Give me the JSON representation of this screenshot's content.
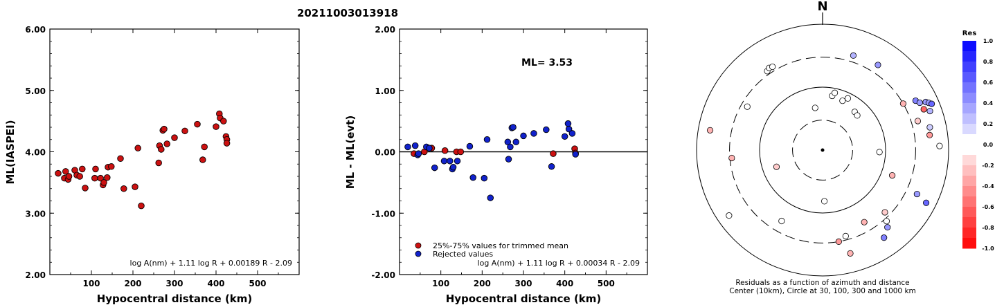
{
  "page_title": "20211003013918",
  "colors": {
    "red": "#dd1111",
    "blue": "#1122cc",
    "trimmed": "#cc1111"
  },
  "chart_data": [
    {
      "type": "scatter",
      "ylabel": "ML(IASPEI)",
      "xlabel": "Hypocentral distance (km)",
      "xlim": [
        0,
        600
      ],
      "ylim": [
        2.0,
        6.0
      ],
      "xticks": [
        "100",
        "200",
        "300",
        "400",
        "500"
      ],
      "yticks": [
        "2.00",
        "3.00",
        "4.00",
        "5.00",
        "6.00"
      ],
      "formula": "log A(nm) + 1.11 log R + 0.00189 R - 2.09",
      "points": [
        [
          20,
          3.65
        ],
        [
          35,
          3.57
        ],
        [
          38,
          3.68
        ],
        [
          44,
          3.55
        ],
        [
          46,
          3.6
        ],
        [
          60,
          3.7
        ],
        [
          65,
          3.62
        ],
        [
          72,
          3.6
        ],
        [
          78,
          3.72
        ],
        [
          85,
          3.41
        ],
        [
          108,
          3.57
        ],
        [
          110,
          3.72
        ],
        [
          122,
          3.57
        ],
        [
          128,
          3.46
        ],
        [
          130,
          3.5
        ],
        [
          138,
          3.58
        ],
        [
          140,
          3.75
        ],
        [
          148,
          3.76
        ],
        [
          170,
          3.89
        ],
        [
          178,
          3.4
        ],
        [
          205,
          3.43
        ],
        [
          212,
          4.06
        ],
        [
          220,
          3.12
        ],
        [
          262,
          3.82
        ],
        [
          264,
          4.1
        ],
        [
          268,
          4.04
        ],
        [
          272,
          4.35
        ],
        [
          275,
          4.37
        ],
        [
          282,
          4.13
        ],
        [
          300,
          4.23
        ],
        [
          325,
          4.34
        ],
        [
          355,
          4.45
        ],
        [
          368,
          3.87
        ],
        [
          372,
          4.08
        ],
        [
          400,
          4.41
        ],
        [
          408,
          4.62
        ],
        [
          410,
          4.55
        ],
        [
          418,
          4.5
        ],
        [
          424,
          4.25
        ],
        [
          426,
          4.2
        ],
        [
          426,
          4.14
        ]
      ]
    },
    {
      "type": "scatter",
      "ylabel": "ML - ML(evt)",
      "xlabel": "Hypocentral distance (km)",
      "xlim": [
        0,
        600
      ],
      "ylim": [
        -2.0,
        2.0
      ],
      "xticks": [
        "100",
        "200",
        "300",
        "400",
        "500"
      ],
      "yticks": [
        "-2.00",
        "-1.00",
        "0.00",
        "1.00",
        "2.00"
      ],
      "annotation": "ML= 3.53",
      "formula": "log A(nm) + 1.11 log R + 0.00034 R - 2.09",
      "legend": [
        "25%-75% values for trimmed mean",
        "Rejected values"
      ],
      "series": [
        {
          "name": "25%-75% values for trimmed mean",
          "color": "#cc1111",
          "points": [
            [
              35,
              -0.03
            ],
            [
              60,
              0.0
            ],
            [
              78,
              0.06
            ],
            [
              110,
              0.02
            ],
            [
              138,
              0.0
            ],
            [
              148,
              0.0
            ],
            [
              372,
              -0.03
            ],
            [
              424,
              0.05
            ],
            [
              426,
              -0.02
            ]
          ]
        },
        {
          "name": "Rejected values",
          "color": "#1122cc",
          "points": [
            [
              20,
              0.08
            ],
            [
              38,
              0.1
            ],
            [
              44,
              -0.05
            ],
            [
              46,
              -0.03
            ],
            [
              65,
              0.08
            ],
            [
              72,
              0.06
            ],
            [
              85,
              -0.26
            ],
            [
              108,
              -0.15
            ],
            [
              122,
              -0.15
            ],
            [
              128,
              -0.28
            ],
            [
              130,
              -0.25
            ],
            [
              140,
              -0.15
            ],
            [
              170,
              0.09
            ],
            [
              178,
              -0.42
            ],
            [
              205,
              -0.43
            ],
            [
              212,
              0.2
            ],
            [
              220,
              -0.75
            ],
            [
              262,
              0.16
            ],
            [
              264,
              -0.12
            ],
            [
              268,
              0.08
            ],
            [
              272,
              0.39
            ],
            [
              275,
              0.4
            ],
            [
              282,
              0.16
            ],
            [
              300,
              0.26
            ],
            [
              325,
              0.3
            ],
            [
              355,
              0.36
            ],
            [
              368,
              -0.24
            ],
            [
              400,
              0.25
            ],
            [
              408,
              0.46
            ],
            [
              410,
              0.37
            ],
            [
              418,
              0.3
            ],
            [
              426,
              -0.04
            ]
          ]
        }
      ]
    },
    {
      "type": "polar-scatter",
      "north_label": "N",
      "caption_line1": "Residuals as a function of azimuth and distance",
      "caption_line2": "Center (10km), Circle at 30, 100, 300 and 1000 km",
      "rings_km": [
        30,
        100,
        300,
        1000
      ],
      "colorbar": {
        "title": "Res",
        "labels": [
          "1.0",
          "0.8",
          "0.6",
          "0.4",
          "0.2",
          "0.0",
          "-0.2",
          "-0.4",
          "-0.6",
          "-0.8",
          "-1.0"
        ]
      },
      "stations": [
        {
          "az": -35,
          "dist": 340,
          "res": 0.0
        },
        {
          "az": -33,
          "dist": 360,
          "res": 0.0
        },
        {
          "az": -31,
          "dist": 350,
          "res": 0.0
        },
        {
          "az": 18,
          "dist": 380,
          "res": 0.3
        },
        {
          "az": 33,
          "dist": 410,
          "res": 0.4
        },
        {
          "az": -60,
          "dist": 240,
          "res": 0.0
        },
        {
          "az": -80,
          "dist": 650,
          "res": -0.3
        },
        {
          "az": -95,
          "dist": 280,
          "res": -0.3
        },
        {
          "az": -110,
          "dist": 60,
          "res": -0.2
        },
        {
          "az": -10,
          "dist": 48,
          "res": 0.0
        },
        {
          "az": 10,
          "dist": 75,
          "res": 0.0
        },
        {
          "az": 12,
          "dist": 85,
          "res": 0.0
        },
        {
          "az": 22,
          "dist": 70,
          "res": 0.0
        },
        {
          "az": 26,
          "dist": 82,
          "res": 0.0
        },
        {
          "az": 40,
          "dist": 62,
          "res": 0.0
        },
        {
          "az": 45,
          "dist": 60,
          "res": 0.0
        },
        {
          "az": 60,
          "dist": 300,
          "res": -0.3
        },
        {
          "az": 62,
          "dist": 470,
          "res": 0.5
        },
        {
          "az": 64,
          "dist": 520,
          "res": 0.4
        },
        {
          "az": 65,
          "dist": 640,
          "res": 0.4
        },
        {
          "az": 66,
          "dist": 700,
          "res": 0.4
        },
        {
          "az": 67,
          "dist": 760,
          "res": 0.6
        },
        {
          "az": 68,
          "dist": 540,
          "res": -0.6
        },
        {
          "az": 70,
          "dist": 650,
          "res": 0.3
        },
        {
          "az": 73,
          "dist": 380,
          "res": -0.2
        },
        {
          "az": 78,
          "dist": 550,
          "res": 0.2
        },
        {
          "az": 82,
          "dist": 520,
          "res": -0.4
        },
        {
          "az": 88,
          "dist": 720,
          "res": 0.0
        },
        {
          "az": 92,
          "dist": 80,
          "res": 0.0
        },
        {
          "az": 110,
          "dist": 150,
          "res": -0.3
        },
        {
          "az": 115,
          "dist": 450,
          "res": 0.4
        },
        {
          "az": 117,
          "dist": 700,
          "res": 0.6
        },
        {
          "az": 135,
          "dist": 250,
          "res": -0.2
        },
        {
          "az": 138,
          "dist": 330,
          "res": 0.0
        },
        {
          "az": 140,
          "dist": 400,
          "res": 0.4
        },
        {
          "az": 145,
          "dist": 500,
          "res": 0.5
        },
        {
          "az": 150,
          "dist": 210,
          "res": -0.3
        },
        {
          "az": 165,
          "dist": 260,
          "res": 0.0
        },
        {
          "az": 170,
          "dist": 300,
          "res": -0.4
        },
        {
          "az": 178,
          "dist": 65,
          "res": 0.0
        },
        {
          "az": -125,
          "dist": 650,
          "res": 0.0
        },
        {
          "az": -150,
          "dist": 200,
          "res": 0.0
        },
        {
          "az": 165,
          "dist": 500,
          "res": -0.3
        }
      ]
    }
  ]
}
